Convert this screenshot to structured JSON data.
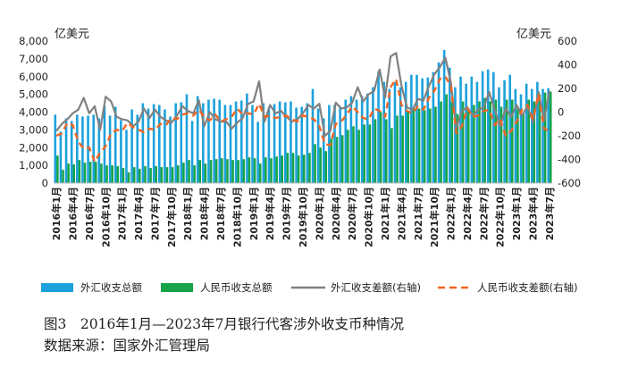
{
  "chart_data": {
    "type": "bar",
    "ylabel_left": "亿美元",
    "ylabel_right": "亿美元",
    "ylim_left": [
      0,
      8000
    ],
    "yticks_left": [
      0,
      1000,
      2000,
      3000,
      4000,
      5000,
      6000,
      7000,
      8000
    ],
    "ytick_labels_left": [
      "0",
      "1,000",
      "2,000",
      "3,000",
      "4,000",
      "5,000",
      "6,000",
      "7,000",
      "8,000"
    ],
    "ylim_right": [
      -600,
      600
    ],
    "yticks_right": [
      -600,
      -400,
      -200,
      0,
      200,
      400,
      600
    ],
    "ytick_labels_right": [
      "-600",
      "-400",
      "-200",
      "0",
      "200",
      "400",
      "600"
    ],
    "x": [
      "2016年1月",
      "2016年2月",
      "2016年3月",
      "2016年4月",
      "2016年5月",
      "2016年6月",
      "2016年7月",
      "2016年8月",
      "2016年9月",
      "2016年10月",
      "2016年11月",
      "2016年12月",
      "2017年1月",
      "2017年2月",
      "2017年3月",
      "2017年4月",
      "2017年5月",
      "2017年6月",
      "2017年7月",
      "2017年8月",
      "2017年9月",
      "2017年10月",
      "2017年11月",
      "2017年12月",
      "2018年1月",
      "2018年2月",
      "2018年3月",
      "2018年4月",
      "2018年5月",
      "2018年6月",
      "2018年7月",
      "2018年8月",
      "2018年9月",
      "2018年10月",
      "2018年11月",
      "2018年12月",
      "2019年1月",
      "2019年2月",
      "2019年3月",
      "2019年4月",
      "2019年5月",
      "2019年6月",
      "2019年7月",
      "2019年8月",
      "2019年9月",
      "2019年10月",
      "2019年11月",
      "2019年12月",
      "2020年1月",
      "2020年2月",
      "2020年3月",
      "2020年4月",
      "2020年5月",
      "2020年6月",
      "2020年7月",
      "2020年8月",
      "2020年9月",
      "2020年10月",
      "2020年11月",
      "2020年12月",
      "2021年1月",
      "2021年2月",
      "2021年3月",
      "2021年4月",
      "2021年5月",
      "2021年6月",
      "2021年7月",
      "2021年8月",
      "2021年9月",
      "2021年10月",
      "2021年11月",
      "2021年12月",
      "2022年1月",
      "2022年2月",
      "2022年3月",
      "2022年4月",
      "2022年5月",
      "2022年6月",
      "2022年7月",
      "2022年8月",
      "2022年9月",
      "2022年10月",
      "2022年11月",
      "2022年12月",
      "2023年1月",
      "2023年2月",
      "2023年3月",
      "2023年4月",
      "2023年5月",
      "2023年6月",
      "2023年7月"
    ],
    "x_tick_labels": [
      "2016年1月",
      "2016年4月",
      "2016年7月",
      "2016年10月",
      "2017年1月",
      "2017年4月",
      "2017年7月",
      "2017年10月",
      "2018年1月",
      "2018年4月",
      "2018年7月",
      "2018年10月",
      "2019年1月",
      "2019年4月",
      "2019年7月",
      "2019年10月",
      "2020年1月",
      "2020年4月",
      "2020年7月",
      "2020年10月",
      "2021年1月",
      "2021年4月",
      "2021年7月",
      "2021年10月",
      "2022年1月",
      "2022年4月",
      "2022年7月",
      "2022年10月",
      "2023年1月",
      "2023年4月",
      "2023年7月"
    ],
    "series": [
      {
        "name": "外汇收支总额",
        "type": "bar",
        "axis": "left",
        "color": "#1ba1dc",
        "values": [
          3850,
          2900,
          3650,
          3500,
          3850,
          3750,
          3800,
          3850,
          3650,
          4350,
          3800,
          4300,
          3550,
          3000,
          4150,
          3850,
          4500,
          4200,
          4450,
          4400,
          4150,
          3750,
          4500,
          4550,
          5000,
          3500,
          4900,
          4500,
          4700,
          4750,
          4700,
          4400,
          4400,
          4600,
          4650,
          5050,
          4400,
          3450,
          4500,
          4250,
          4450,
          4600,
          4550,
          4600,
          4250,
          4300,
          4500,
          5300,
          4200,
          3650,
          4400,
          4400,
          4300,
          4700,
          4900,
          4700,
          4900,
          5050,
          5400,
          6300,
          5700,
          5300,
          5700,
          5400,
          5700,
          6100,
          6100,
          5900,
          5950,
          6250,
          6800,
          7500,
          6500,
          5400,
          6000,
          5600,
          6000,
          5700,
          6300,
          6400,
          6250,
          5400,
          5800,
          6100,
          5300,
          5000,
          5600,
          5300,
          5700,
          5300,
          5350
        ]
      },
      {
        "name": "人民币收支总额",
        "type": "bar",
        "axis": "left",
        "color": "#16a34a",
        "values": [
          1550,
          750,
          1100,
          1050,
          1300,
          1150,
          1200,
          1200,
          1100,
          1000,
          1000,
          950,
          850,
          600,
          900,
          800,
          950,
          850,
          950,
          900,
          900,
          900,
          1000,
          1150,
          1300,
          1000,
          1300,
          1100,
          1300,
          1350,
          1400,
          1350,
          1300,
          1300,
          1350,
          1450,
          1400,
          1100,
          1450,
          1400,
          1500,
          1550,
          1700,
          1700,
          1550,
          1600,
          1700,
          2200,
          2000,
          1800,
          2500,
          2600,
          2700,
          3000,
          3200,
          3000,
          3300,
          3300,
          3600,
          4000,
          3600,
          3100,
          3800,
          3800,
          4000,
          4200,
          4200,
          4100,
          4200,
          4300,
          4600,
          5000,
          4600,
          3900,
          4600,
          4200,
          4400,
          4600,
          4800,
          4600,
          4700,
          4300,
          4700,
          4700,
          4200,
          3900,
          4700,
          4600,
          5000,
          5100,
          5150
        ]
      },
      {
        "name": "外汇收支差额(右轴)",
        "type": "line",
        "axis": "right",
        "color": "#808080",
        "values": [
          -160,
          -100,
          -60,
          -10,
          20,
          120,
          -10,
          50,
          -150,
          130,
          90,
          -40,
          -60,
          -70,
          -120,
          -80,
          30,
          -50,
          20,
          -40,
          -70,
          -90,
          -30,
          50,
          10,
          -10,
          100,
          -120,
          0,
          -60,
          -80,
          -80,
          -140,
          -90,
          -50,
          70,
          90,
          260,
          -80,
          60,
          -10,
          10,
          -40,
          -80,
          -60,
          -10,
          60,
          30,
          70,
          -200,
          -160,
          80,
          30,
          40,
          80,
          210,
          90,
          150,
          180,
          360,
          120,
          470,
          500,
          220,
          40,
          20,
          110,
          100,
          220,
          320,
          380,
          460,
          250,
          -140,
          10,
          40,
          -30,
          20,
          40,
          170,
          20,
          -120,
          30,
          -40,
          60,
          -30,
          50,
          -90,
          170,
          -70,
          180
        ]
      },
      {
        "name": "人民币收支差额(右轴)",
        "type": "line",
        "axis": "right",
        "color": "#f26522",
        "values": [
          -200,
          -180,
          -90,
          -110,
          -250,
          -310,
          -300,
          -420,
          -340,
          -290,
          -180,
          -150,
          -160,
          -90,
          -130,
          -150,
          -170,
          -140,
          -150,
          -100,
          -110,
          -50,
          -60,
          -20,
          -10,
          -30,
          20,
          -40,
          -70,
          -20,
          -80,
          -60,
          -40,
          30,
          -20,
          -10,
          -20,
          70,
          -40,
          -30,
          -50,
          -40,
          -30,
          -60,
          -80,
          -30,
          -40,
          -60,
          -120,
          -270,
          -280,
          -100,
          -80,
          -20,
          50,
          0,
          -50,
          -60,
          30,
          10,
          -40,
          210,
          280,
          60,
          10,
          -10,
          50,
          20,
          120,
          180,
          280,
          300,
          220,
          -180,
          -120,
          30,
          -40,
          -30,
          10,
          20,
          -110,
          -60,
          -200,
          -160,
          -80,
          20,
          60,
          -60,
          150,
          -140,
          -160
        ]
      }
    ],
    "legend": [
      "外汇收支总额",
      "人民币收支总额",
      "外汇收支差额(右轴)",
      "人民币收支差额(右轴)"
    ],
    "legend_position": "bottom"
  },
  "caption": {
    "figure_title": "图3　2016年1月—2023年7月银行代客涉外收支币种情况",
    "source": "数据来源：国家外汇管理局"
  }
}
